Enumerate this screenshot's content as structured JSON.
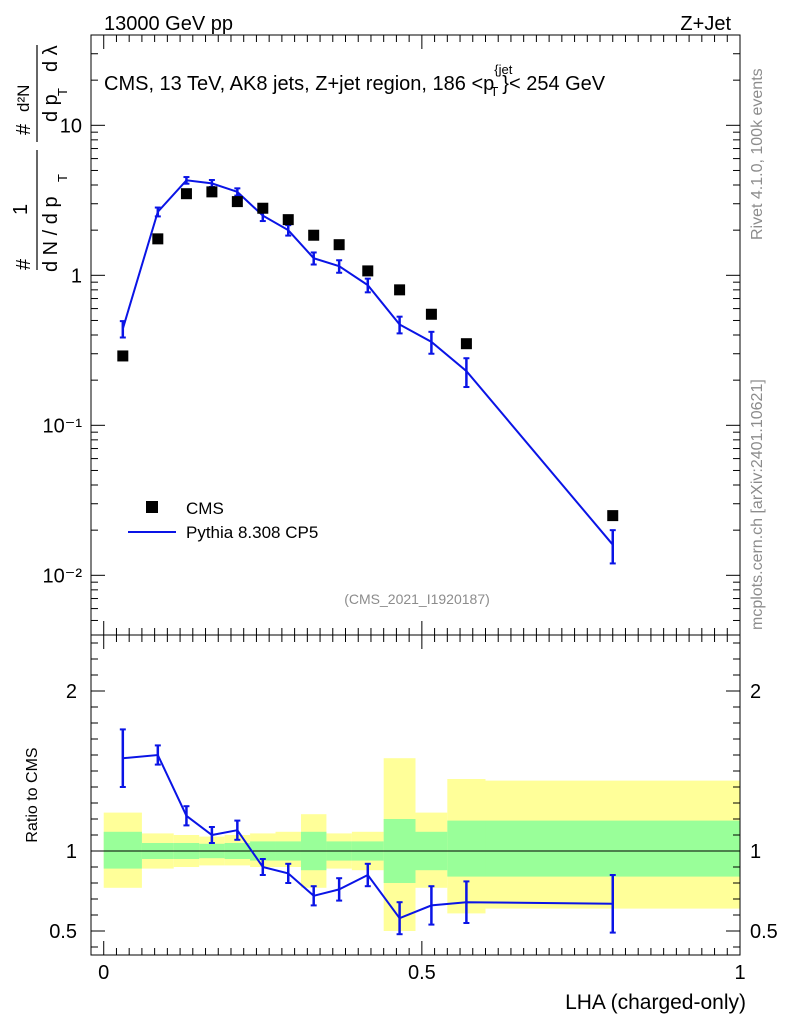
{
  "header": {
    "energy_label": "13000 GeV pp",
    "process_label": "Z+Jet",
    "description_main": "CMS, 13 TeV, AK8 jets, Z+jet region, 186 <p",
    "description_sup": "{jet",
    "description_sub": "T",
    "description_tail": "}< 254 GeV",
    "analysis_id": "(CMS_2021_I1920187)"
  },
  "side_labels": {
    "rivet": "Rivet 4.1.0,  100k events",
    "mcplots": "mcplots.cern.ch [arXiv:2401.10621]"
  },
  "colors": {
    "cms": "#000000",
    "pythia": "#0a14e6",
    "band_inner": "#99ff99",
    "band_outer": "#ffff99"
  },
  "chart_data": [
    {
      "type": "scatter",
      "title": "CMS, 13 TeV, AK8 jets, Z+jet region, 186 <pT{jet}< 254 GeV",
      "xlabel": "",
      "ylabel_parts": {
        "hash1": "#",
        "one": "1",
        "dN": "d N / d p",
        "sub_T1": "T",
        "hash2": "#",
        "d2N": "d²N",
        "dpT": "d p",
        "sub_T2": "T",
        "dl": "d λ"
      },
      "xlim": [
        -0.02,
        1.0
      ],
      "ylim": [
        0.004,
        40
      ],
      "yscale": "log",
      "ytick_labels": [
        "10",
        "1",
        "10⁻¹",
        "10⁻²"
      ],
      "legend": [
        {
          "label": "CMS",
          "style": "marker"
        },
        {
          "label": "Pythia 8.308 CP5",
          "style": "line"
        }
      ],
      "series": [
        {
          "name": "CMS",
          "x": [
            0.03,
            0.085,
            0.13,
            0.17,
            0.21,
            0.25,
            0.29,
            0.33,
            0.37,
            0.415,
            0.465,
            0.515,
            0.57,
            0.8
          ],
          "y": [
            0.29,
            1.75,
            3.5,
            3.6,
            3.1,
            2.8,
            2.35,
            1.85,
            1.6,
            1.07,
            0.8,
            0.55,
            0.35,
            0.025
          ]
        },
        {
          "name": "Pythia 8.308 CP5",
          "x": [
            0.03,
            0.085,
            0.13,
            0.17,
            0.21,
            0.25,
            0.29,
            0.33,
            0.37,
            0.415,
            0.465,
            0.515,
            0.57,
            0.8
          ],
          "y": [
            0.44,
            2.65,
            4.3,
            4.1,
            3.6,
            2.5,
            2.0,
            1.3,
            1.15,
            0.86,
            0.47,
            0.36,
            0.23,
            0.016
          ],
          "yerr": [
            0.055,
            0.18,
            0.22,
            0.22,
            0.2,
            0.2,
            0.16,
            0.12,
            0.11,
            0.09,
            0.06,
            0.06,
            0.05,
            0.004
          ]
        }
      ]
    },
    {
      "type": "line",
      "title": "",
      "xlabel": "LHA (charged-only)",
      "ylabel": "Ratio to CMS",
      "xlim": [
        -0.02,
        1.0
      ],
      "ylim": [
        0.35,
        2.35
      ],
      "xtick_labels": [
        "0",
        "0.5",
        "1"
      ],
      "ytick_labels": [
        "2",
        "1",
        "0.5"
      ],
      "reference": 1.0,
      "bands": [
        {
          "x0": 0.0,
          "x1": 0.06,
          "inner": [
            0.89,
            1.12
          ],
          "outer": [
            0.77,
            1.24
          ]
        },
        {
          "x0": 0.06,
          "x1": 0.11,
          "inner": [
            0.95,
            1.05
          ],
          "outer": [
            0.89,
            1.11
          ]
        },
        {
          "x0": 0.11,
          "x1": 0.15,
          "inner": [
            0.95,
            1.05
          ],
          "outer": [
            0.9,
            1.1
          ]
        },
        {
          "x0": 0.15,
          "x1": 0.19,
          "inner": [
            0.955,
            1.045
          ],
          "outer": [
            0.91,
            1.09
          ]
        },
        {
          "x0": 0.19,
          "x1": 0.23,
          "inner": [
            0.95,
            1.05
          ],
          "outer": [
            0.91,
            1.1
          ]
        },
        {
          "x0": 0.23,
          "x1": 0.27,
          "inner": [
            0.94,
            1.06
          ],
          "outer": [
            0.9,
            1.11
          ]
        },
        {
          "x0": 0.27,
          "x1": 0.31,
          "inner": [
            0.94,
            1.06
          ],
          "outer": [
            0.9,
            1.12
          ]
        },
        {
          "x0": 0.31,
          "x1": 0.35,
          "inner": [
            0.88,
            1.12
          ],
          "outer": [
            0.77,
            1.23
          ]
        },
        {
          "x0": 0.35,
          "x1": 0.39,
          "inner": [
            0.94,
            1.06
          ],
          "outer": [
            0.89,
            1.11
          ]
        },
        {
          "x0": 0.39,
          "x1": 0.44,
          "inner": [
            0.94,
            1.06
          ],
          "outer": [
            0.88,
            1.12
          ]
        },
        {
          "x0": 0.44,
          "x1": 0.49,
          "inner": [
            0.8,
            1.2
          ],
          "outer": [
            0.5,
            1.58
          ]
        },
        {
          "x0": 0.49,
          "x1": 0.54,
          "inner": [
            0.88,
            1.12
          ],
          "outer": [
            0.77,
            1.24
          ]
        },
        {
          "x0": 0.54,
          "x1": 0.6,
          "inner": [
            0.84,
            1.19
          ],
          "outer": [
            0.61,
            1.45
          ]
        },
        {
          "x0": 0.6,
          "x1": 1.0,
          "inner": [
            0.84,
            1.19
          ],
          "outer": [
            0.64,
            1.44
          ]
        }
      ],
      "series": [
        {
          "name": "Pythia 8.308 CP5",
          "x": [
            0.03,
            0.085,
            0.13,
            0.17,
            0.21,
            0.25,
            0.29,
            0.33,
            0.37,
            0.415,
            0.465,
            0.515,
            0.57,
            0.8
          ],
          "y": [
            1.58,
            1.6,
            1.22,
            1.1,
            1.13,
            0.9,
            0.86,
            0.72,
            0.76,
            0.85,
            0.58,
            0.66,
            0.68,
            0.67
          ],
          "yerr": [
            0.18,
            0.06,
            0.06,
            0.05,
            0.06,
            0.05,
            0.06,
            0.06,
            0.07,
            0.07,
            0.1,
            0.12,
            0.13,
            0.18
          ]
        }
      ]
    }
  ]
}
